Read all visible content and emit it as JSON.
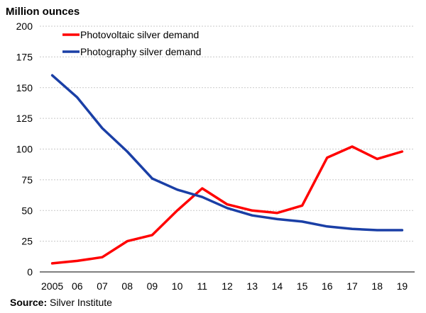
{
  "chart_data": {
    "type": "line",
    "ylabel": "Million ounces",
    "x": [
      "2005",
      "06",
      "07",
      "08",
      "09",
      "10",
      "11",
      "12",
      "13",
      "14",
      "15",
      "16",
      "17",
      "18",
      "19"
    ],
    "ylim": [
      0,
      200
    ],
    "yticks": [
      0,
      25,
      50,
      75,
      100,
      125,
      150,
      175,
      200
    ],
    "grid": true,
    "legend": "top-left",
    "series": [
      {
        "name": "Photovoltaic silver demand",
        "color": "#ff0000",
        "values": [
          7,
          9,
          12,
          25,
          30,
          50,
          68,
          55,
          50,
          48,
          54,
          93,
          102,
          92,
          98
        ]
      },
      {
        "name": "Photography silver demand",
        "color": "#1a3fa6",
        "values": [
          160,
          142,
          117,
          98,
          76,
          67,
          61,
          52,
          46,
          43,
          41,
          37,
          35,
          34,
          34
        ]
      }
    ]
  },
  "source": {
    "label": "Source:",
    "text": " Silver Institute"
  }
}
